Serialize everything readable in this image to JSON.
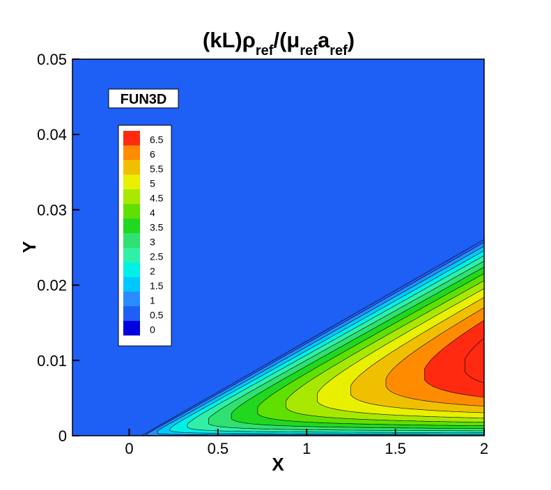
{
  "chart_data": {
    "type": "contour",
    "title": [
      "(kL)ρ",
      "ref",
      "/(μ",
      "ref",
      "a",
      "ref",
      ")"
    ],
    "x_label": "X",
    "y_label": "Y",
    "annotation": "FUN3D",
    "xlim": [
      -0.32,
      2
    ],
    "xticks": [
      0,
      0.5,
      1,
      1.5,
      2
    ],
    "ylim": [
      0,
      0.05
    ],
    "yticks": [
      0,
      0.01,
      0.02,
      0.03,
      0.04,
      0.05
    ],
    "levels": [
      0,
      0.5,
      1,
      1.5,
      2,
      2.5,
      3,
      3.5,
      4,
      4.5,
      5,
      5.5,
      6,
      6.5
    ],
    "colors": [
      "#0000e0",
      "#1e5ff5",
      "#2a8cff",
      "#00c8ff",
      "#00f0e8",
      "#30f0a8",
      "#30e070",
      "#20d820",
      "#60e000",
      "#a8e800",
      "#e8f000",
      "#f0c000",
      "#ff8c00",
      "#ff2a10"
    ],
    "background": "#1e5ff5"
  }
}
